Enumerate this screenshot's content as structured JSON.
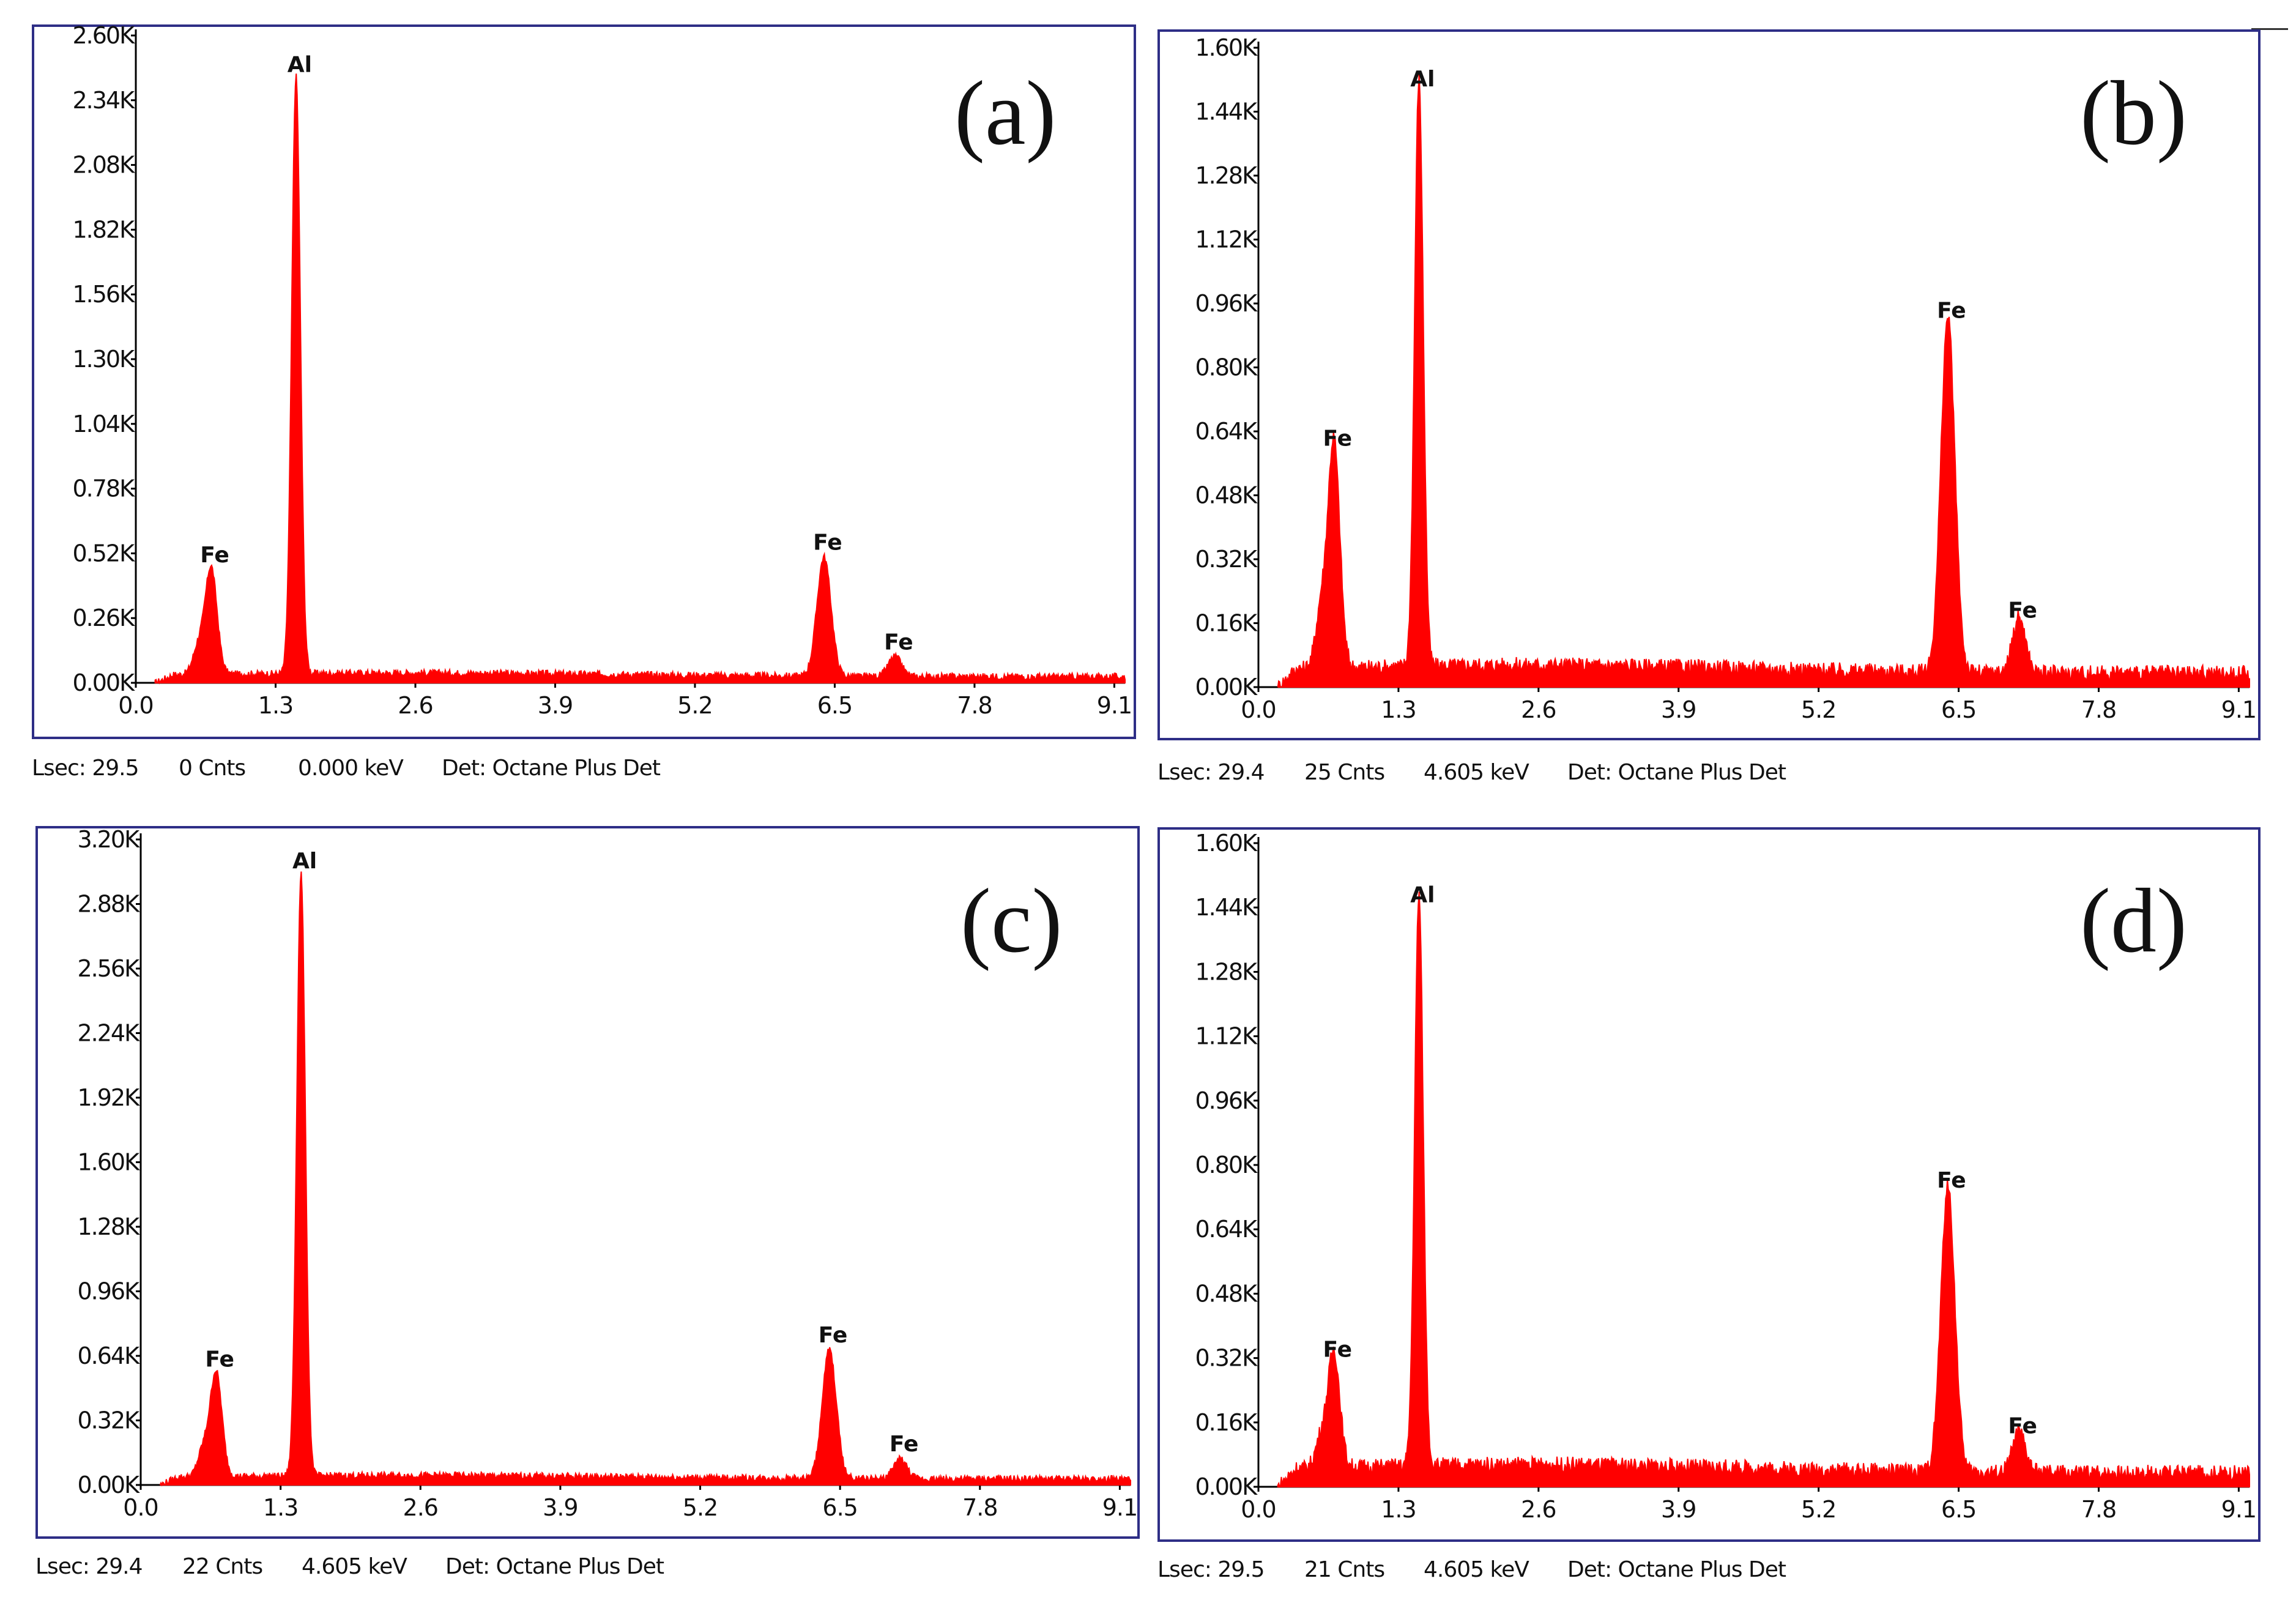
{
  "chart_data": [
    {
      "id": "a",
      "type": "area",
      "panel_label": "(a)",
      "xlabel": "",
      "ylabel": "",
      "xlim": [
        0.0,
        9.2
      ],
      "ylim": [
        0,
        2600
      ],
      "x_ticks": [
        0.0,
        1.3,
        2.6,
        3.9,
        5.2,
        6.5,
        7.8,
        9.1
      ],
      "x_tick_labels": [
        "0.0",
        "1.3",
        "2.6",
        "3.9",
        "5.2",
        "6.5",
        "7.8",
        "9.1"
      ],
      "y_ticks": [
        0,
        260,
        520,
        780,
        1040,
        1300,
        1560,
        1820,
        2080,
        2340,
        2600
      ],
      "y_tick_labels": [
        "0.00K",
        "0.26K",
        "0.52K",
        "0.78K",
        "1.04K",
        "1.30K",
        "1.56K",
        "1.82K",
        "2.08K",
        "2.34K",
        "2.60K"
      ],
      "background": 25,
      "series": [
        {
          "name": "Counts",
          "color": "#ff0000"
        }
      ],
      "peaks": [
        {
          "label": "Fe",
          "x": 0.7,
          "y": 430
        },
        {
          "label": "Al",
          "x": 1.49,
          "y": 2400
        },
        {
          "label": "Fe",
          "x": 6.4,
          "y": 480
        },
        {
          "label": "Fe",
          "x": 7.06,
          "y": 80
        }
      ],
      "status": {
        "lsec": "Lsec: 29.5",
        "cnts": "0 Cnts",
        "kev": "0.000 keV",
        "det": "Det: Octane Plus Det"
      }
    },
    {
      "id": "b",
      "type": "area",
      "panel_label": "(b)",
      "xlabel": "",
      "ylabel": "",
      "xlim": [
        0.0,
        9.2
      ],
      "ylim": [
        0,
        1600
      ],
      "x_ticks": [
        0.0,
        1.3,
        2.6,
        3.9,
        5.2,
        6.5,
        7.8,
        9.1
      ],
      "x_tick_labels": [
        "0.0",
        "1.3",
        "2.6",
        "3.9",
        "5.2",
        "6.5",
        "7.8",
        "9.1"
      ],
      "y_ticks": [
        0,
        160,
        320,
        480,
        640,
        800,
        960,
        1120,
        1280,
        1440,
        1600
      ],
      "y_tick_labels": [
        "0.00K",
        "0.16K",
        "0.32K",
        "0.48K",
        "0.64K",
        "0.80K",
        "0.96K",
        "1.12K",
        "1.28K",
        "1.44K",
        "1.60K"
      ],
      "background": 35,
      "series": [
        {
          "name": "Counts",
          "color": "#ff0000"
        }
      ],
      "peaks": [
        {
          "label": "Fe",
          "x": 0.7,
          "y": 570
        },
        {
          "label": "Al",
          "x": 1.49,
          "y": 1470
        },
        {
          "label": "Fe",
          "x": 6.4,
          "y": 890
        },
        {
          "label": "Fe",
          "x": 7.06,
          "y": 140
        }
      ],
      "status": {
        "lsec": "Lsec: 29.4",
        "cnts": "25 Cnts",
        "kev": "4.605 keV",
        "det": "Det: Octane Plus Det"
      }
    },
    {
      "id": "c",
      "type": "area",
      "panel_label": "(c)",
      "xlabel": "",
      "ylabel": "",
      "xlim": [
        0.0,
        9.2
      ],
      "ylim": [
        0,
        3200
      ],
      "x_ticks": [
        0.0,
        1.3,
        2.6,
        3.9,
        5.2,
        6.5,
        7.8,
        9.1
      ],
      "x_tick_labels": [
        "0.0",
        "1.3",
        "2.6",
        "3.9",
        "5.2",
        "6.5",
        "7.8",
        "9.1"
      ],
      "y_ticks": [
        0,
        320,
        640,
        960,
        1280,
        1600,
        1920,
        2240,
        2560,
        2880,
        3200
      ],
      "y_tick_labels": [
        "0.00K",
        "0.32K",
        "0.64K",
        "0.96K",
        "1.28K",
        "1.60K",
        "1.92K",
        "2.24K",
        "2.56K",
        "2.88K",
        "3.20K"
      ],
      "background": 30,
      "series": [
        {
          "name": "Counts",
          "color": "#ff0000"
        }
      ],
      "peaks": [
        {
          "label": "Fe",
          "x": 0.7,
          "y": 520
        },
        {
          "label": "Al",
          "x": 1.49,
          "y": 2990
        },
        {
          "label": "Fe",
          "x": 6.4,
          "y": 640
        },
        {
          "label": "Fe",
          "x": 7.06,
          "y": 100
        }
      ],
      "status": {
        "lsec": "Lsec: 29.4",
        "cnts": "22 Cnts",
        "kev": "4.605 keV",
        "det": "Det: Octane Plus Det"
      }
    },
    {
      "id": "d",
      "type": "area",
      "panel_label": "(d)",
      "xlabel": "",
      "ylabel": "",
      "xlim": [
        0.0,
        9.2
      ],
      "ylim": [
        0,
        1600
      ],
      "x_ticks": [
        0.0,
        1.3,
        2.6,
        3.9,
        5.2,
        6.5,
        7.8,
        9.1
      ],
      "x_tick_labels": [
        "0.0",
        "1.3",
        "2.6",
        "3.9",
        "5.2",
        "6.5",
        "7.8",
        "9.1"
      ],
      "y_ticks": [
        0,
        160,
        320,
        480,
        640,
        800,
        960,
        1120,
        1280,
        1440,
        1600
      ],
      "y_tick_labels": [
        "0.00K",
        "0.16K",
        "0.32K",
        "0.48K",
        "0.64K",
        "0.80K",
        "0.96K",
        "1.12K",
        "1.28K",
        "1.44K",
        "1.60K"
      ],
      "background": 35,
      "series": [
        {
          "name": "Counts",
          "color": "#ff0000"
        }
      ],
      "peaks": [
        {
          "label": "Fe",
          "x": 0.7,
          "y": 290
        },
        {
          "label": "Al",
          "x": 1.49,
          "y": 1420
        },
        {
          "label": "Fe",
          "x": 6.4,
          "y": 710
        },
        {
          "label": "Fe",
          "x": 7.06,
          "y": 100
        }
      ],
      "status": {
        "lsec": "Lsec: 29.5",
        "cnts": "21 Cnts",
        "kev": "4.605 keV",
        "det": "Det: Octane Plus Det"
      }
    }
  ]
}
